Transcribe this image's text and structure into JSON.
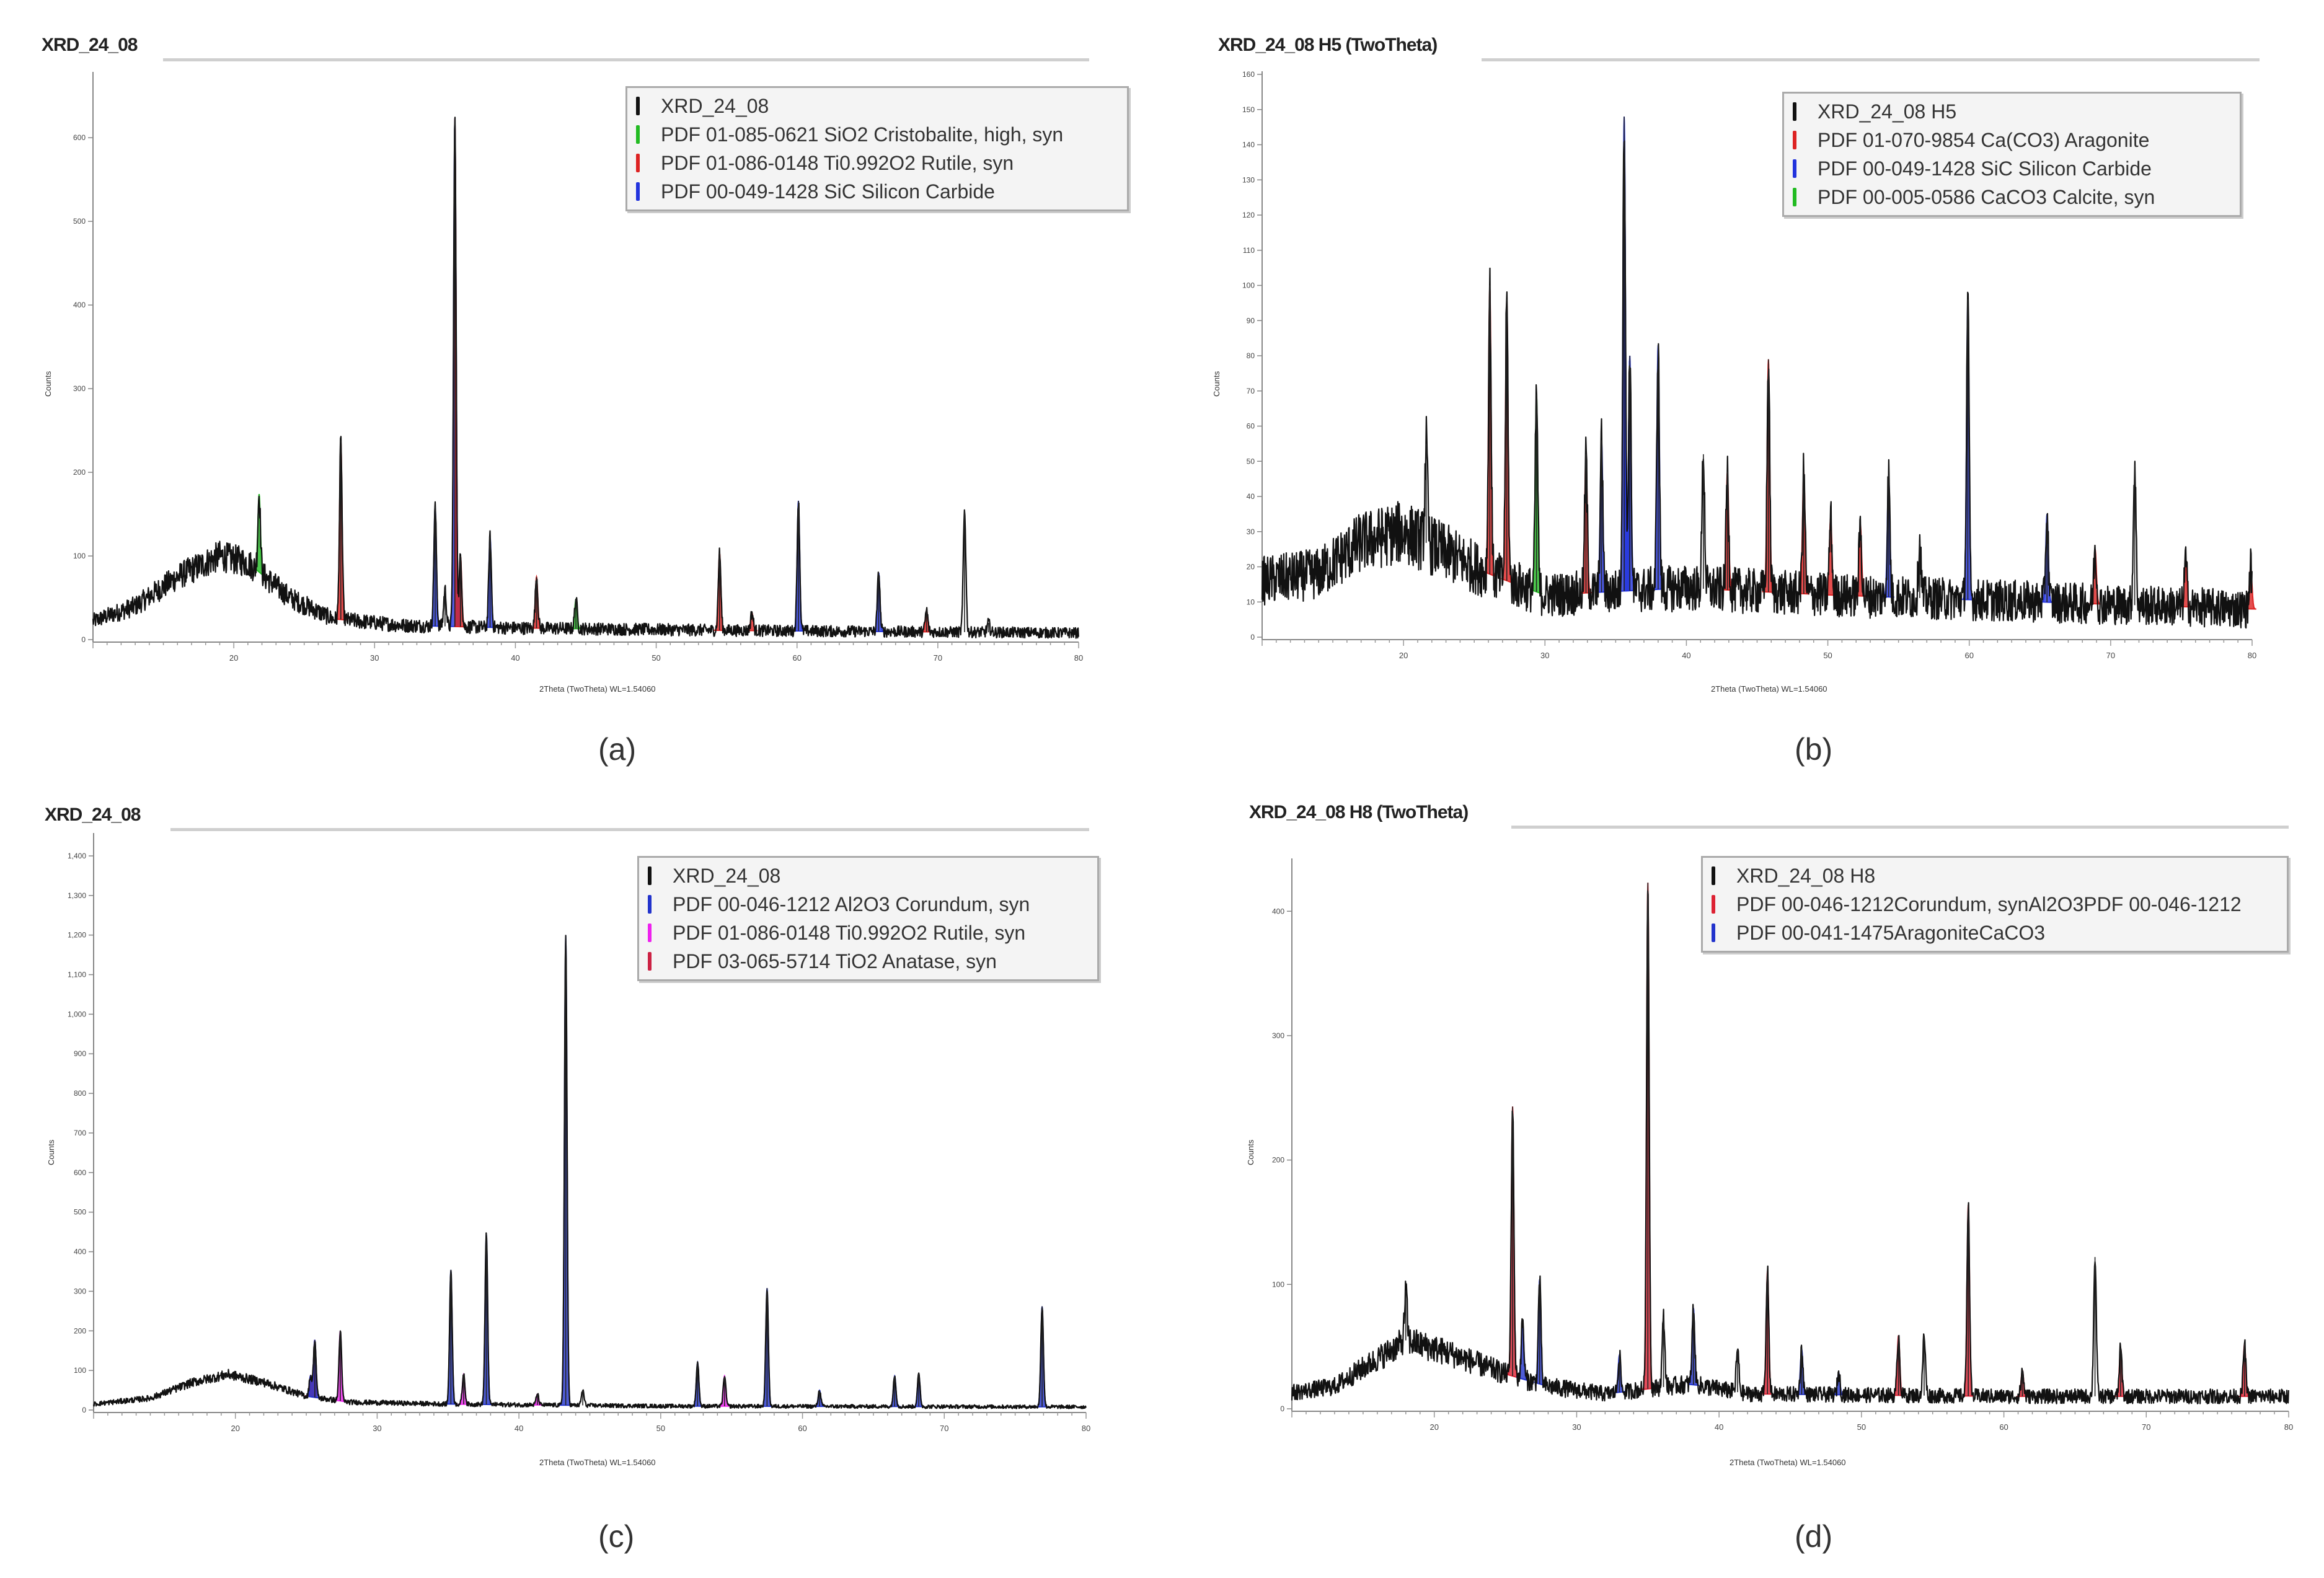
{
  "captions": [
    "(a)",
    "(b)",
    "(c)",
    "(d)"
  ],
  "chart_data": [
    {
      "type": "line",
      "title": "XRD_24_08",
      "xlabel": "2Theta (TwoTheta) WL=1.54060",
      "ylabel": "Counts",
      "xlim": [
        10,
        80
      ],
      "ylim": [
        0,
        675
      ],
      "xticks": [
        20,
        30,
        40,
        50,
        60,
        70,
        80
      ],
      "yticks": [
        0,
        100,
        200,
        300,
        400,
        500,
        600
      ],
      "legend_placement": "top-right",
      "series": [
        {
          "name": "XRD_24_08",
          "color": "#111111"
        },
        {
          "name": "PDF 01-085-0621 SiO2 Cristobalite, high, syn",
          "color": "#22bb22"
        },
        {
          "name": "PDF 01-086-0148 Ti0.992O2 Rutile, syn",
          "color": "#dd2222"
        },
        {
          "name": "PDF 00-049-1428 SiC Silicon Carbide",
          "color": "#2233dd"
        }
      ],
      "background": [
        [
          10,
          22
        ],
        [
          13,
          40
        ],
        [
          16,
          75
        ],
        [
          19,
          100
        ],
        [
          21,
          92
        ],
        [
          24,
          50
        ],
        [
          27,
          25
        ],
        [
          32,
          17
        ],
        [
          40,
          14
        ],
        [
          55,
          11
        ],
        [
          80,
          8
        ]
      ],
      "peaks": [
        {
          "x": 21.8,
          "y": 174,
          "phase": 1
        },
        {
          "x": 27.6,
          "y": 238,
          "phase": 2
        },
        {
          "x": 34.3,
          "y": 159,
          "phase": 3
        },
        {
          "x": 35.0,
          "y": 60,
          "phase": 0
        },
        {
          "x": 35.7,
          "y": 623,
          "phase": 3
        },
        {
          "x": 36.1,
          "y": 100,
          "phase": 2
        },
        {
          "x": 38.2,
          "y": 123,
          "phase": 3
        },
        {
          "x": 41.5,
          "y": 75,
          "phase": 2
        },
        {
          "x": 44.3,
          "y": 48,
          "phase": 1
        },
        {
          "x": 54.5,
          "y": 104,
          "phase": 2
        },
        {
          "x": 56.8,
          "y": 32,
          "phase": 2
        },
        {
          "x": 60.1,
          "y": 166,
          "phase": 3
        },
        {
          "x": 65.8,
          "y": 80,
          "phase": 3
        },
        {
          "x": 69.2,
          "y": 35,
          "phase": 2
        },
        {
          "x": 71.9,
          "y": 155,
          "phase": 0
        },
        {
          "x": 73.6,
          "y": 20,
          "phase": 0
        }
      ]
    },
    {
      "type": "line",
      "title": "XRD_24_08 H5 (TwoTheta)",
      "xlabel": "2Theta (TwoTheta) WL=1.54060",
      "ylabel": "Counts",
      "xlim": [
        10,
        80
      ],
      "ylim": [
        0,
        160
      ],
      "xticks": [
        20,
        30,
        40,
        50,
        60,
        70,
        80
      ],
      "yticks": [
        0,
        10,
        20,
        30,
        40,
        50,
        60,
        70,
        80,
        90,
        100,
        110,
        120,
        130,
        140,
        150,
        160
      ],
      "legend_placement": "top-right",
      "series": [
        {
          "name": "XRD_24_08 H5",
          "color": "#111111"
        },
        {
          "name": "PDF 01-070-9854 Ca(CO3) Aragonite",
          "color": "#dd2222"
        },
        {
          "name": "PDF 00-049-1428 SiC Silicon Carbide",
          "color": "#2233dd"
        },
        {
          "name": "PDF 00-005-0586 CaCO3 Calcite, syn",
          "color": "#22bb22"
        }
      ],
      "background": [
        [
          10,
          16
        ],
        [
          14,
          18
        ],
        [
          17,
          27
        ],
        [
          20,
          30
        ],
        [
          23,
          24
        ],
        [
          26,
          18
        ],
        [
          30,
          12
        ],
        [
          40,
          14
        ],
        [
          50,
          12
        ],
        [
          80,
          8
        ]
      ],
      "peaks": [
        {
          "x": 21.6,
          "y": 55,
          "phase": 0
        },
        {
          "x": 26.1,
          "y": 100,
          "phase": 1
        },
        {
          "x": 27.3,
          "y": 96,
          "phase": 1
        },
        {
          "x": 29.4,
          "y": 69,
          "phase": 3
        },
        {
          "x": 32.9,
          "y": 52,
          "phase": 1
        },
        {
          "x": 34.0,
          "y": 56,
          "phase": 2
        },
        {
          "x": 35.6,
          "y": 148,
          "phase": 2
        },
        {
          "x": 36.0,
          "y": 80,
          "phase": 2
        },
        {
          "x": 38.0,
          "y": 83,
          "phase": 2
        },
        {
          "x": 41.2,
          "y": 52,
          "phase": 0
        },
        {
          "x": 42.9,
          "y": 47,
          "phase": 1
        },
        {
          "x": 45.8,
          "y": 79,
          "phase": 1
        },
        {
          "x": 48.3,
          "y": 47,
          "phase": 1
        },
        {
          "x": 50.2,
          "y": 34,
          "phase": 1
        },
        {
          "x": 52.3,
          "y": 32,
          "phase": 1
        },
        {
          "x": 54.3,
          "y": 46,
          "phase": 2
        },
        {
          "x": 56.5,
          "y": 27,
          "phase": 0
        },
        {
          "x": 59.9,
          "y": 96,
          "phase": 2
        },
        {
          "x": 65.5,
          "y": 35,
          "phase": 2
        },
        {
          "x": 68.9,
          "y": 25,
          "phase": 1
        },
        {
          "x": 71.7,
          "y": 49,
          "phase": 0
        },
        {
          "x": 75.3,
          "y": 22,
          "phase": 1
        },
        {
          "x": 79.9,
          "y": 20,
          "phase": 1
        }
      ]
    },
    {
      "type": "line",
      "title": "XRD_24_08",
      "xlabel": "2Theta (TwoTheta) WL=1.54060",
      "ylabel": "Counts",
      "xlim": [
        10,
        80
      ],
      "ylim": [
        0,
        1450
      ],
      "xticks": [
        20,
        30,
        40,
        50,
        60,
        70,
        80
      ],
      "yticks": [
        0,
        100,
        200,
        300,
        400,
        500,
        600,
        700,
        800,
        900,
        1000,
        1100,
        1200,
        1300,
        1400
      ],
      "ytick_labels": [
        "0",
        "100",
        "200",
        "300",
        "400",
        "500",
        "600",
        "700",
        "800",
        "900",
        "1,000",
        "1,100",
        "1,200",
        "1,300",
        "1,400"
      ],
      "legend_placement": "top-right",
      "series": [
        {
          "name": "XRD_24_08",
          "color": "#111111"
        },
        {
          "name": "PDF 00-046-1212 Al2O3 Corundum, syn",
          "color": "#2233cc"
        },
        {
          "name": "PDF 01-086-0148 Ti0.992O2 Rutile, syn",
          "color": "#ee22ee"
        },
        {
          "name": "PDF 03-065-5714 TiO2 Anatase, syn",
          "color": "#cc2244"
        }
      ],
      "background": [
        [
          10,
          15
        ],
        [
          14,
          30
        ],
        [
          17,
          70
        ],
        [
          19.5,
          90
        ],
        [
          22,
          70
        ],
        [
          25,
          35
        ],
        [
          28,
          20
        ],
        [
          35,
          15
        ],
        [
          50,
          10
        ],
        [
          80,
          8
        ]
      ],
      "peaks": [
        {
          "x": 25.3,
          "y": 86,
          "phase": 3
        },
        {
          "x": 25.6,
          "y": 177,
          "phase": 1
        },
        {
          "x": 27.4,
          "y": 200,
          "phase": 2
        },
        {
          "x": 35.2,
          "y": 354,
          "phase": 1
        },
        {
          "x": 36.1,
          "y": 90,
          "phase": 2
        },
        {
          "x": 37.7,
          "y": 445,
          "phase": 1
        },
        {
          "x": 41.3,
          "y": 40,
          "phase": 2
        },
        {
          "x": 43.3,
          "y": 1200,
          "phase": 1
        },
        {
          "x": 44.5,
          "y": 50,
          "phase": 0
        },
        {
          "x": 52.6,
          "y": 120,
          "phase": 1
        },
        {
          "x": 54.5,
          "y": 86,
          "phase": 2
        },
        {
          "x": 57.5,
          "y": 308,
          "phase": 1
        },
        {
          "x": 61.2,
          "y": 50,
          "phase": 1
        },
        {
          "x": 66.5,
          "y": 86,
          "phase": 1
        },
        {
          "x": 68.2,
          "y": 90,
          "phase": 1
        },
        {
          "x": 76.9,
          "y": 262,
          "phase": 1
        }
      ]
    },
    {
      "type": "line",
      "title": "XRD_24_08 H8 (TwoTheta)",
      "xlabel": "2Theta (TwoTheta) WL=1.54060",
      "ylabel": "Counts",
      "xlim": [
        10,
        80
      ],
      "ylim": [
        0,
        440
      ],
      "xticks": [
        20,
        30,
        40,
        50,
        60,
        70,
        80
      ],
      "yticks": [
        0,
        100,
        200,
        300,
        400
      ],
      "legend_placement": "top-right",
      "series": [
        {
          "name": "XRD_24_08 H8",
          "color": "#111111"
        },
        {
          "name": "PDF 00-046-1212Corundum, synAl2O3PDF 00-046-1212",
          "color": "#dd2233"
        },
        {
          "name": "PDF 00-041-1475AragoniteCaCO3",
          "color": "#2233cc"
        }
      ],
      "background": [
        [
          10,
          13
        ],
        [
          13,
          18
        ],
        [
          16,
          40
        ],
        [
          18,
          55
        ],
        [
          21,
          45
        ],
        [
          25,
          28
        ],
        [
          28,
          18
        ],
        [
          32,
          12
        ],
        [
          38,
          20
        ],
        [
          42,
          12
        ],
        [
          60,
          10
        ],
        [
          80,
          10
        ]
      ],
      "peaks": [
        {
          "x": 18.0,
          "y": 95,
          "phase": 0
        },
        {
          "x": 25.5,
          "y": 243,
          "phase": 1
        },
        {
          "x": 26.2,
          "y": 70,
          "phase": 2
        },
        {
          "x": 27.4,
          "y": 104,
          "phase": 2
        },
        {
          "x": 33.0,
          "y": 43,
          "phase": 2
        },
        {
          "x": 35.0,
          "y": 423,
          "phase": 1
        },
        {
          "x": 36.1,
          "y": 74,
          "phase": 0
        },
        {
          "x": 38.2,
          "y": 81,
          "phase": 2
        },
        {
          "x": 41.3,
          "y": 48,
          "phase": 0
        },
        {
          "x": 43.4,
          "y": 111,
          "phase": 1
        },
        {
          "x": 45.8,
          "y": 48,
          "phase": 2
        },
        {
          "x": 48.4,
          "y": 29,
          "phase": 2
        },
        {
          "x": 52.6,
          "y": 59,
          "phase": 1
        },
        {
          "x": 54.4,
          "y": 59,
          "phase": 0
        },
        {
          "x": 57.5,
          "y": 164,
          "phase": 1
        },
        {
          "x": 61.3,
          "y": 31,
          "phase": 1
        },
        {
          "x": 66.4,
          "y": 122,
          "phase": 0
        },
        {
          "x": 68.2,
          "y": 49,
          "phase": 1
        },
        {
          "x": 76.9,
          "y": 52,
          "phase": 1
        }
      ]
    }
  ]
}
